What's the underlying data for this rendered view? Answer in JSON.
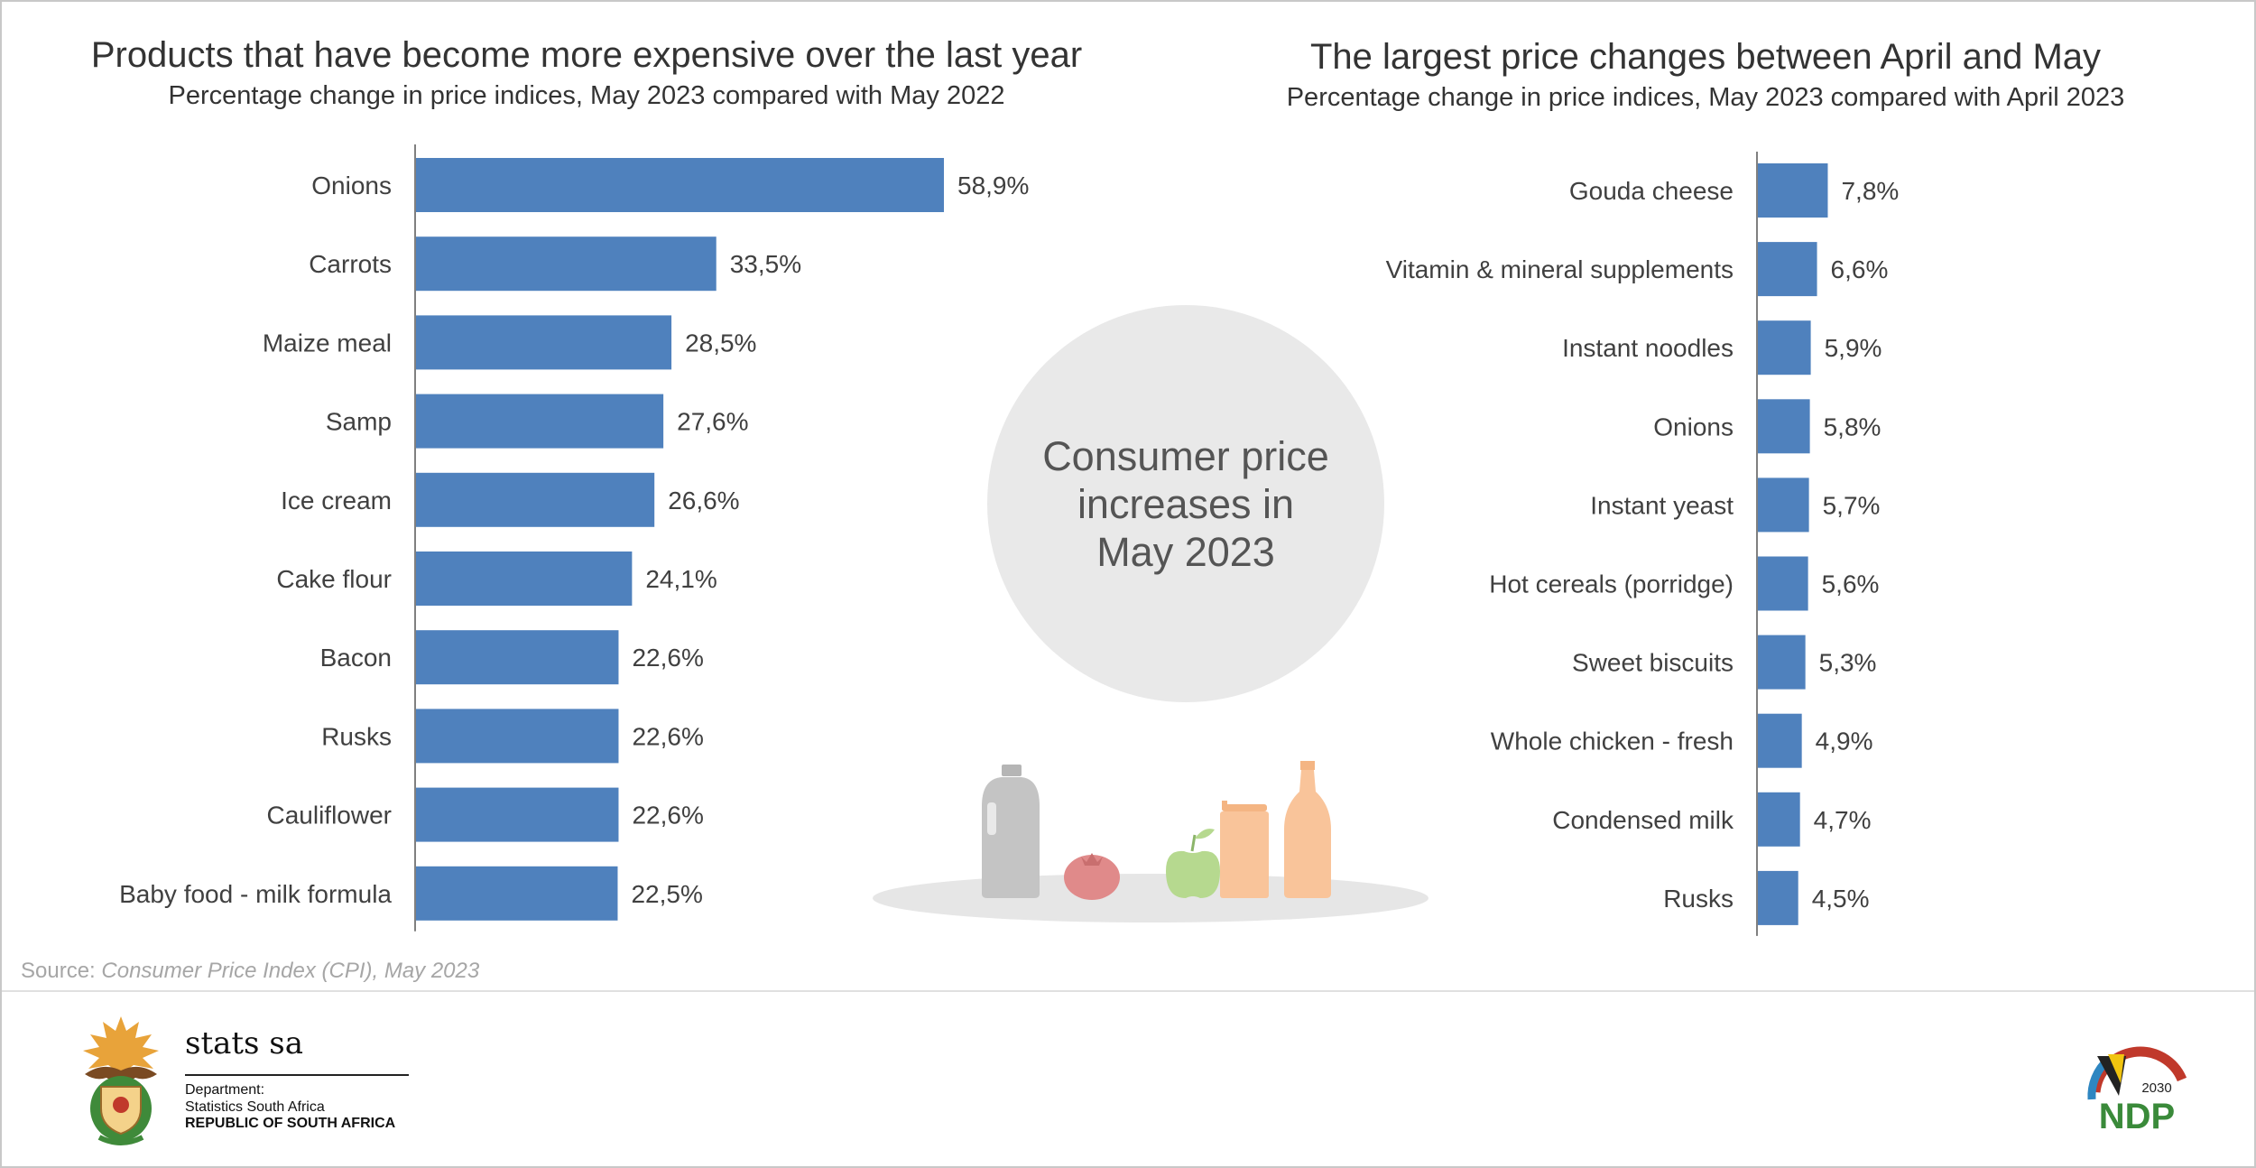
{
  "left_chart": {
    "title": "Products that have become more expensive over the last year",
    "subtitle": "Percentage change in price indices, May 2023 compared with May 2022"
  },
  "right_chart": {
    "title": "The largest price changes between April and May",
    "subtitle": "Percentage change in price indices, May 2023 compared with April 2023"
  },
  "center_bubble": {
    "text": "Consumer price increases in May 2023"
  },
  "source": {
    "prefix": "Source: ",
    "name": "Consumer Price Index (CPI), May 2023"
  },
  "footer": {
    "stats_name": "stats sa",
    "department_label": "Department:",
    "department_name": "Statistics South Africa",
    "republic": "REPUBLIC OF SOUTH AFRICA",
    "ndp_text": "NDP",
    "ndp_year": "2030"
  },
  "colors": {
    "bar": "#4f81bd",
    "bubble": "#e9e9e9",
    "milk_jug": "#c4c4c4",
    "tomato": "#e08a8a",
    "apple": "#b6d98f",
    "can": "#f9c49a",
    "bottle": "#f9c49a",
    "plate": "#e6e6e6"
  },
  "icons": [
    "milk-jug-icon",
    "tomato-icon",
    "apple-icon",
    "can-icon",
    "bottle-icon",
    "coat-of-arms-logo",
    "ndp-2030-logo"
  ],
  "chart_data": [
    {
      "type": "bar",
      "orientation": "horizontal",
      "title": "Products that have become more expensive over the last year",
      "subtitle": "Percentage change in price indices, May 2023 compared with May 2022",
      "categories": [
        "Onions",
        "Carrots",
        "Maize meal",
        "Samp",
        "Ice cream",
        "Cake flour",
        "Bacon",
        "Rusks",
        "Cauliflower",
        "Baby food - milk formula"
      ],
      "values": [
        58.9,
        33.5,
        28.5,
        27.6,
        26.6,
        24.1,
        22.6,
        22.6,
        22.6,
        22.5
      ],
      "labels": [
        "58,9%",
        "33,5%",
        "28,5%",
        "27,6%",
        "26,6%",
        "24,1%",
        "22,6%",
        "22,6%",
        "22,6%",
        "22,5%"
      ],
      "xlim": [
        0,
        60
      ],
      "grid": false
    },
    {
      "type": "bar",
      "orientation": "horizontal",
      "title": "The largest price changes between April and May",
      "subtitle": "Percentage change in price indices, May 2023 compared with April 2023",
      "categories": [
        "Gouda cheese",
        "Vitamin & mineral supplements",
        "Instant noodles",
        "Onions",
        "Instant yeast",
        "Hot cereals (porridge)",
        "Sweet biscuits",
        "Whole chicken - fresh",
        "Condensed milk",
        "Rusks"
      ],
      "values": [
        7.8,
        6.6,
        5.9,
        5.8,
        5.7,
        5.6,
        5.3,
        4.9,
        4.7,
        4.5
      ],
      "labels": [
        "7,8%",
        "6,6%",
        "5,9%",
        "5,8%",
        "5,7%",
        "5,6%",
        "5,3%",
        "4,9%",
        "4,7%",
        "4,5%"
      ],
      "xlim": [
        0,
        60
      ],
      "grid": false
    }
  ]
}
